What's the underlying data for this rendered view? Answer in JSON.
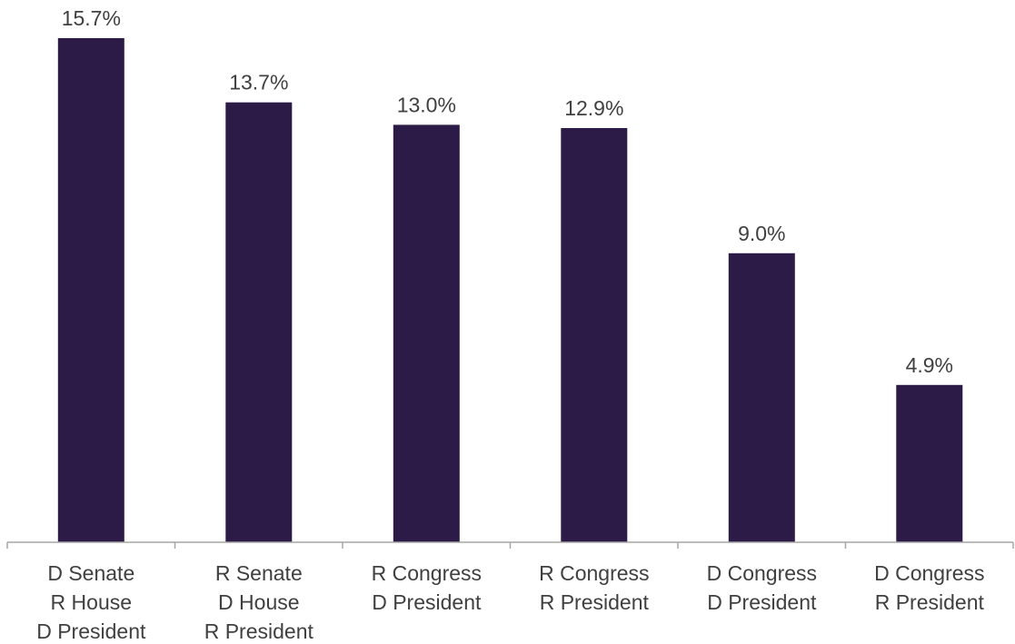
{
  "chart_data": {
    "type": "bar",
    "categories": [
      [
        "D Senate",
        "R House",
        "D President"
      ],
      [
        "R Senate",
        "D House",
        "R President"
      ],
      [
        "R Congress",
        "D President"
      ],
      [
        "R Congress",
        "R President"
      ],
      [
        "D Congress",
        "D President"
      ],
      [
        "D Congress",
        "R President"
      ]
    ],
    "values": [
      15.7,
      13.7,
      13.0,
      12.9,
      9.0,
      4.9
    ],
    "data_labels": [
      "15.7%",
      "13.7%",
      "13.0%",
      "12.9%",
      "9.0%",
      "4.9%"
    ],
    "title": "",
    "xlabel": "",
    "ylabel": "",
    "ylim": [
      0,
      15.7
    ],
    "grid": false,
    "legend": "none",
    "bar_color": "#2c1a47",
    "axis_color": "#a6a6a6",
    "label_color": "#404040",
    "stray_mark": "*"
  }
}
